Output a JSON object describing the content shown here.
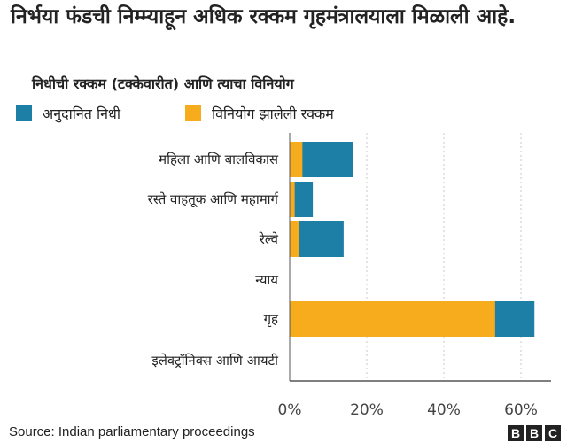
{
  "header": {
    "title": "निर्भया फंडची निम्म्याहून अधिक रक्कम गृहमंत्रालयाला मिळाली आहे.",
    "subtitle": "निधीची रक्कम (टक्केवारीत) आणि त्याचा विनियोग"
  },
  "legend": [
    {
      "label": "अनुदानित निधी",
      "color": "#1d7fa6"
    },
    {
      "label": "विनियोग झालेली रक्कम",
      "color": "#f7ac1d"
    }
  ],
  "chart_data": {
    "type": "bar",
    "orientation": "horizontal",
    "stacked": "overlay",
    "categories": [
      "महिला आणि बालविकास",
      "रस्ते वाहतूक आणि महामार्ग",
      "रेल्वे",
      "न्याय",
      "गृह",
      "इलेक्ट्रॉनिक्स आणि आयटी"
    ],
    "series": [
      {
        "name": "अनुदानित निधी",
        "color": "#1d7fa6",
        "values": [
          16.5,
          6,
          14,
          0,
          63.5,
          0
        ]
      },
      {
        "name": "विनियोग झालेली रक्कम",
        "color": "#f7ac1d",
        "values": [
          3.3,
          1.3,
          2.3,
          0,
          53.3,
          0
        ]
      }
    ],
    "x_ticks": [
      "0%",
      "20%",
      "40%",
      "60%"
    ],
    "xlim": [
      0,
      65
    ],
    "grid": "vertical dotted",
    "legend_position": "top"
  },
  "footer": {
    "source": "Source: Indian parliamentary proceedings",
    "logo": [
      "B",
      "B",
      "C"
    ]
  }
}
